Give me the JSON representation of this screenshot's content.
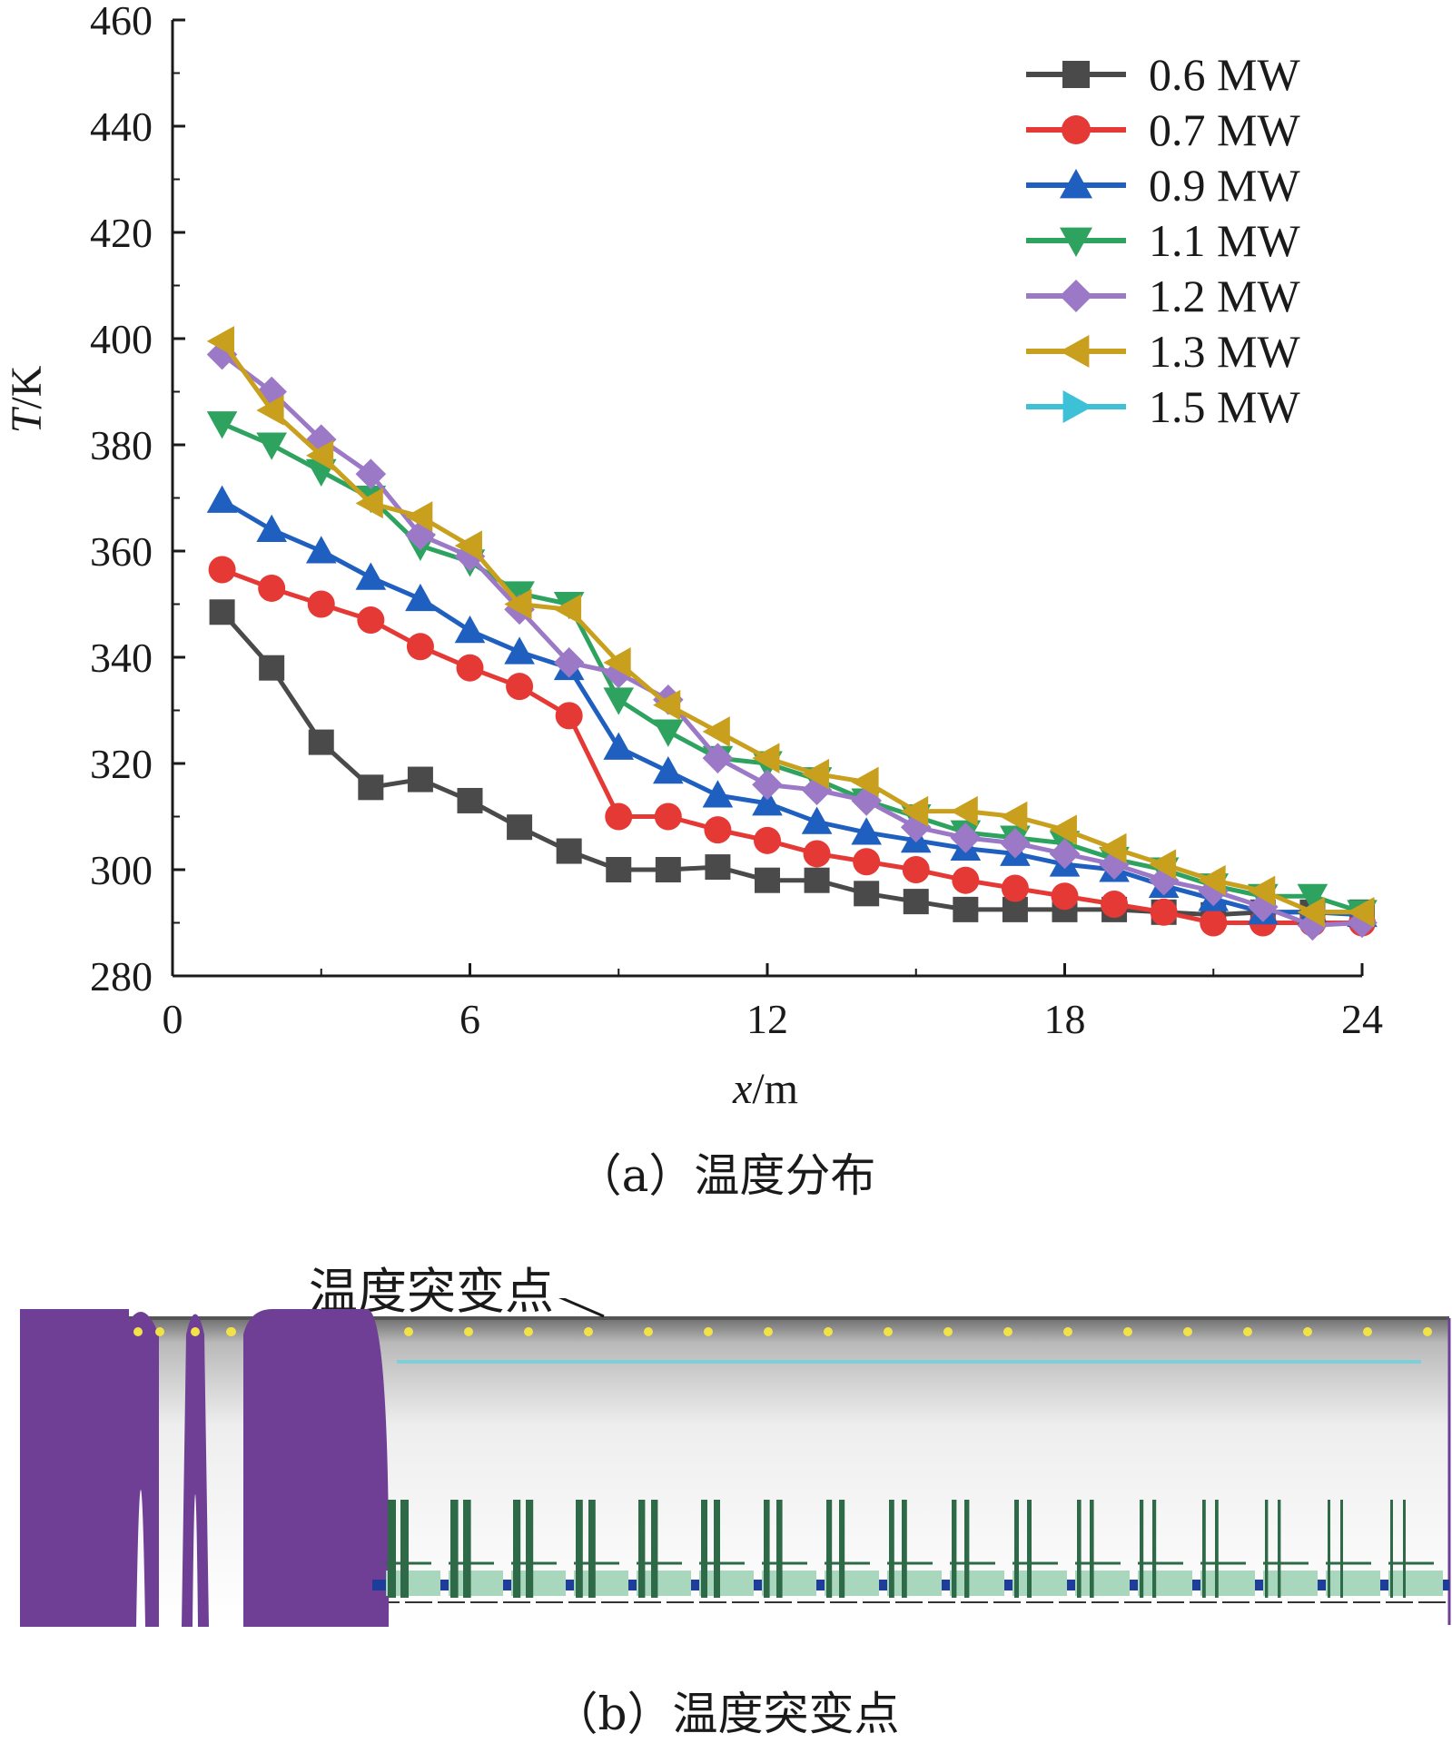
{
  "chart_data": {
    "type": "line",
    "xlabel_var": "x",
    "xlabel_unit": "/m",
    "ylabel_var": "T",
    "ylabel_unit": "/K",
    "xlim": [
      0,
      24
    ],
    "ylim": [
      280,
      460
    ],
    "xticks": [
      0,
      6,
      12,
      18,
      24
    ],
    "yticks": [
      280,
      300,
      320,
      340,
      360,
      380,
      400,
      420,
      440,
      460
    ],
    "legend_position": "top-right",
    "x": [
      1,
      2,
      3,
      4,
      5,
      6,
      7,
      8,
      9,
      10,
      11,
      12,
      13,
      14,
      15,
      16,
      17,
      18,
      19,
      20,
      21,
      22,
      23,
      24
    ],
    "series": [
      {
        "name": "0.6 MW",
        "color": "#4a4a4a",
        "marker": "square",
        "values": [
          348.5,
          338,
          324,
          315.5,
          317,
          313,
          308,
          303.5,
          300,
          300,
          300.5,
          298,
          298,
          295.5,
          294,
          292.5,
          292.5,
          292.5,
          292.5,
          292,
          291.5,
          292,
          292,
          292
        ]
      },
      {
        "name": "0.7 MW",
        "color": "#e53935",
        "marker": "circle",
        "values": [
          356.5,
          353,
          350,
          347,
          342,
          338,
          334.5,
          329,
          310,
          310,
          307.5,
          305.5,
          303,
          301.5,
          300,
          298,
          296.5,
          295,
          293.5,
          292,
          290,
          290,
          290,
          290
        ]
      },
      {
        "name": "0.9 MW",
        "color": "#1f5fbf",
        "marker": "triangle-up",
        "values": [
          369.5,
          364,
          360,
          355,
          351,
          345,
          341,
          338,
          323,
          318.5,
          314,
          312.5,
          309,
          307,
          305.5,
          304,
          303,
          301,
          300,
          297,
          294.5,
          292,
          292,
          291.5
        ]
      },
      {
        "name": "1.1 MW",
        "color": "#2ea35f",
        "marker": "triangle-down",
        "values": [
          384,
          380,
          375,
          370,
          361,
          358,
          352,
          350,
          332,
          326,
          321,
          320,
          317,
          313,
          310,
          307,
          306,
          305,
          302,
          300,
          297,
          295,
          295,
          292
        ]
      },
      {
        "name": "1.2 MW",
        "color": "#9b79c6",
        "marker": "diamond",
        "values": [
          397,
          390,
          381,
          374.5,
          363,
          359,
          349,
          339,
          337,
          332,
          321,
          316,
          315,
          313,
          308,
          306,
          305,
          303,
          301,
          298,
          296,
          293,
          289.5,
          290
        ]
      },
      {
        "name": "1.3 MW",
        "color": "#c9a01e",
        "marker": "triangle-left",
        "values": [
          399.5,
          386.5,
          378,
          369,
          366.5,
          361,
          350,
          349,
          339,
          331,
          326,
          321,
          318,
          316.5,
          311,
          311,
          310,
          307.5,
          304,
          301,
          298,
          296,
          292,
          292
        ]
      },
      {
        "name": "1.5 MW",
        "color": "#3cc1d6",
        "marker": "triangle-right",
        "values": [
          null,
          null,
          null,
          null,
          null,
          null,
          null,
          null,
          null,
          null,
          null,
          null,
          null,
          null,
          null,
          null,
          null,
          null,
          null,
          null,
          null,
          null,
          null,
          null
        ]
      }
    ]
  },
  "captions": {
    "a": "（a）温度分布",
    "b": "（b）温度突变点"
  },
  "tunnel": {
    "annotation": "温度突变点",
    "colors": {
      "portal": "#6e3f94",
      "lamp": "#f2e24a",
      "cable": "#7fcfd6",
      "rail": "#1e3c9a",
      "bracket": "#2f6a48",
      "bracket_fill": "#a9d7bd"
    }
  }
}
